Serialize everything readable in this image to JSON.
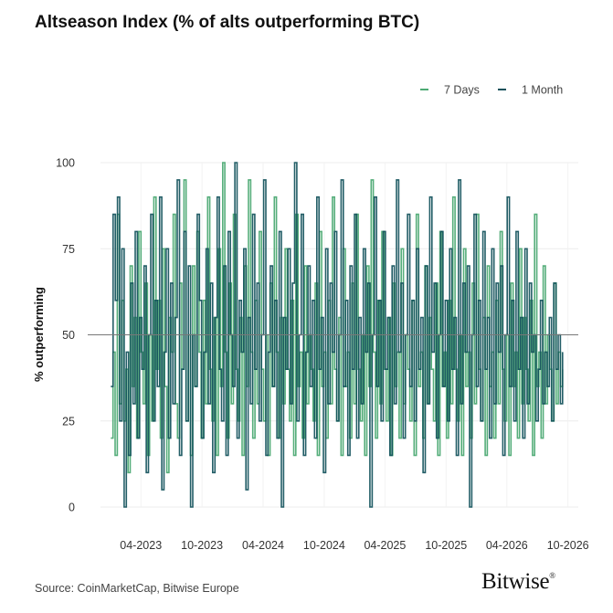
{
  "chart_data": {
    "type": "line",
    "title": "Altseason Index (% of alts outperforming BTC)",
    "xlabel": "",
    "ylabel": "% outperforming",
    "ylim": [
      0,
      100
    ],
    "yticks": [
      0,
      25,
      50,
      75,
      100
    ],
    "xlim": [
      "2022-12-01",
      "2026-11-01"
    ],
    "xtick_dates": [
      "2023-04-01",
      "2023-10-01",
      "2024-04-01",
      "2024-10-01",
      "2025-04-01",
      "2025-10-01",
      "2026-04-01",
      "2026-10-01"
    ],
    "xtick_labels": [
      "04-2023",
      "10-2023",
      "04-2024",
      "10-2024",
      "04-2025",
      "10-2025",
      "04-2026",
      "10-2026"
    ],
    "reference_line": 50,
    "grid": true,
    "legend_position": "top-right",
    "series": [
      {
        "name": "7 Days",
        "color": "#4daa74",
        "start": "2023-01-01",
        "values": [
          20,
          45,
          15,
          85,
          30,
          60,
          25,
          40,
          10,
          70,
          35,
          55,
          20,
          80,
          45,
          30,
          65,
          15,
          50,
          25,
          90,
          40,
          60,
          20,
          75,
          35,
          10,
          55,
          45,
          85,
          30,
          20,
          65,
          40,
          95,
          25,
          50,
          15,
          70,
          35,
          80,
          45,
          20,
          60,
          30,
          90,
          40,
          25,
          55,
          15,
          75,
          35,
          100,
          45,
          20,
          65,
          30,
          85,
          40,
          25,
          55,
          15,
          70,
          35,
          95,
          45,
          20,
          60,
          30,
          80,
          40,
          25,
          50,
          15,
          65,
          35,
          90,
          45,
          20,
          55,
          30,
          75,
          40,
          25,
          60,
          15,
          85,
          35,
          45,
          20,
          70,
          30,
          50,
          40,
          25,
          65,
          15,
          80,
          35,
          45,
          20,
          60,
          30,
          90,
          40,
          25,
          55,
          15,
          75,
          35,
          45,
          20,
          65,
          30,
          85,
          40,
          25,
          50,
          15,
          70,
          35,
          95,
          45,
          20,
          60,
          30,
          80,
          40,
          25,
          55,
          15,
          65,
          35,
          45,
          20,
          75,
          30,
          50,
          40,
          25,
          60,
          15,
          85,
          35,
          45,
          20,
          70,
          30,
          55,
          40,
          25,
          65,
          15,
          80,
          35,
          45,
          20,
          60,
          30,
          90,
          40,
          25,
          50,
          15,
          75,
          35,
          45,
          20,
          65,
          30,
          85,
          40,
          25,
          55,
          15,
          70,
          35,
          45,
          20,
          60,
          30,
          80,
          40,
          25,
          50,
          15,
          65,
          35,
          45,
          20,
          75,
          30,
          55,
          40,
          25,
          60,
          15,
          85,
          35,
          45,
          20,
          70,
          30,
          50,
          40,
          25,
          65,
          30,
          45,
          35,
          40
        ]
      },
      {
        "name": "1 Month",
        "color": "#10505a",
        "start": "2023-01-01",
        "values": [
          35,
          85,
          60,
          90,
          25,
          75,
          0,
          45,
          15,
          65,
          30,
          80,
          20,
          55,
          40,
          70,
          10,
          50,
          85,
          25,
          60,
          35,
          90,
          5,
          45,
          75,
          20,
          65,
          30,
          55,
          95,
          15,
          40,
          80,
          25,
          70,
          0,
          50,
          35,
          85,
          60,
          20,
          45,
          75,
          30,
          65,
          10,
          55,
          90,
          40,
          25,
          70,
          15,
          80,
          50,
          35,
          100,
          20,
          60,
          45,
          75,
          5,
          55,
          30,
          85,
          40,
          65,
          25,
          50,
          95,
          15,
          45,
          70,
          35,
          60,
          20,
          80,
          0,
          55,
          40,
          75,
          30,
          65,
          100,
          25,
          50,
          85,
          15,
          45,
          70,
          35,
          60,
          20,
          90,
          40,
          55,
          10,
          75,
          30,
          65,
          45,
          80,
          25,
          50,
          95,
          35,
          60,
          15,
          70,
          40,
          85,
          20,
          55,
          30,
          75,
          45,
          65,
          0,
          50,
          90,
          35,
          60,
          25,
          80,
          40,
          55,
          15,
          70,
          30,
          95,
          45,
          65,
          20,
          50,
          85,
          35,
          60,
          25,
          75,
          40,
          55,
          10,
          70,
          30,
          90,
          45,
          65,
          20,
          50,
          80,
          35,
          60,
          25,
          75,
          40,
          55,
          15,
          95,
          30,
          65,
          45,
          70,
          0,
          50,
          85,
          35,
          60,
          25,
          80,
          40,
          55,
          20,
          75,
          30,
          65,
          45,
          70,
          15,
          50,
          90,
          35,
          60,
          25,
          80,
          40,
          55,
          20,
          75,
          30,
          65,
          45,
          50,
          25,
          40,
          60,
          30,
          45,
          35,
          55,
          25,
          65,
          40,
          50,
          30,
          45
        ]
      }
    ]
  },
  "footer": {
    "source": "Source: CoinMarketCap, Bitwise Europe",
    "brand": "Bitwise",
    "brand_mark": "®"
  }
}
